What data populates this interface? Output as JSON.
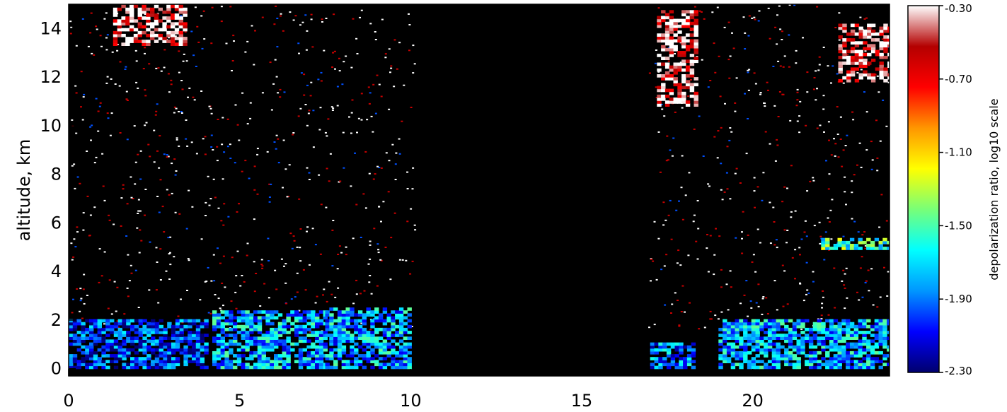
{
  "chart_data": {
    "type": "heatmap",
    "title": "",
    "xlabel": "",
    "ylabel": "altitude, km",
    "xlim": [
      0,
      24
    ],
    "ylim": [
      -0.3,
      15
    ],
    "x_ticks": [
      "0",
      "5",
      "10",
      "15",
      "20"
    ],
    "x_tick_values": [
      0,
      5,
      10,
      15,
      20
    ],
    "y_ticks": [
      "0",
      "2",
      "4",
      "6",
      "8",
      "10",
      "12",
      "14"
    ],
    "y_tick_values": [
      0,
      2,
      4,
      6,
      8,
      10,
      12,
      14
    ],
    "background_color": "#000000",
    "colorbar": {
      "label": "depolarization ratio, log10 scale",
      "scale": "log10",
      "range": [
        -2.3,
        -0.3
      ],
      "ticks": [
        "-0.30",
        "-0.70",
        "-1.10",
        "-1.50",
        "-1.90",
        "-2.30"
      ],
      "tick_values": [
        -0.3,
        -0.7,
        -1.1,
        -1.5,
        -1.9,
        -2.3
      ],
      "colormap_stops": [
        "#00006e",
        "#0000ff",
        "#0096ff",
        "#00ffff",
        "#78ff78",
        "#ffff00",
        "#ff9600",
        "#ff0000",
        "#b40000",
        "#ffffff"
      ]
    },
    "no_data_intervals_hours": [
      [
        10.1,
        16.9
      ]
    ],
    "features": [
      {
        "x_range": [
          0,
          4
        ],
        "alt_range_km": [
          0,
          2
        ],
        "log10_depol": -2.0
      },
      {
        "x_range": [
          4.2,
          7.5
        ],
        "alt_range_km": [
          0,
          2.4
        ],
        "log10_depol": -1.8
      },
      {
        "x_range": [
          7.5,
          10
        ],
        "alt_range_km": [
          0,
          2.5
        ],
        "log10_depol": -1.8
      },
      {
        "x_range": [
          17,
          18.3
        ],
        "alt_range_km": [
          0,
          1
        ],
        "log10_depol": -1.9
      },
      {
        "x_range": [
          19,
          24
        ],
        "alt_range_km": [
          0,
          2
        ],
        "log10_depol": -1.8
      },
      {
        "x_range": [
          22,
          24
        ],
        "alt_range_km": [
          4.9,
          5.3
        ],
        "log10_depol": -1.5
      },
      {
        "x_range": [
          1.3,
          3.4
        ],
        "alt_range_km": [
          13.3,
          14.9
        ],
        "log10_depol": -0.5
      },
      {
        "x_range": [
          17.2,
          18.4
        ],
        "alt_range_km": [
          10.8,
          14.7
        ],
        "log10_depol": -0.5
      },
      {
        "x_range": [
          22.5,
          24
        ],
        "alt_range_km": [
          11.8,
          14.1
        ],
        "log10_depol": -0.5
      }
    ]
  }
}
